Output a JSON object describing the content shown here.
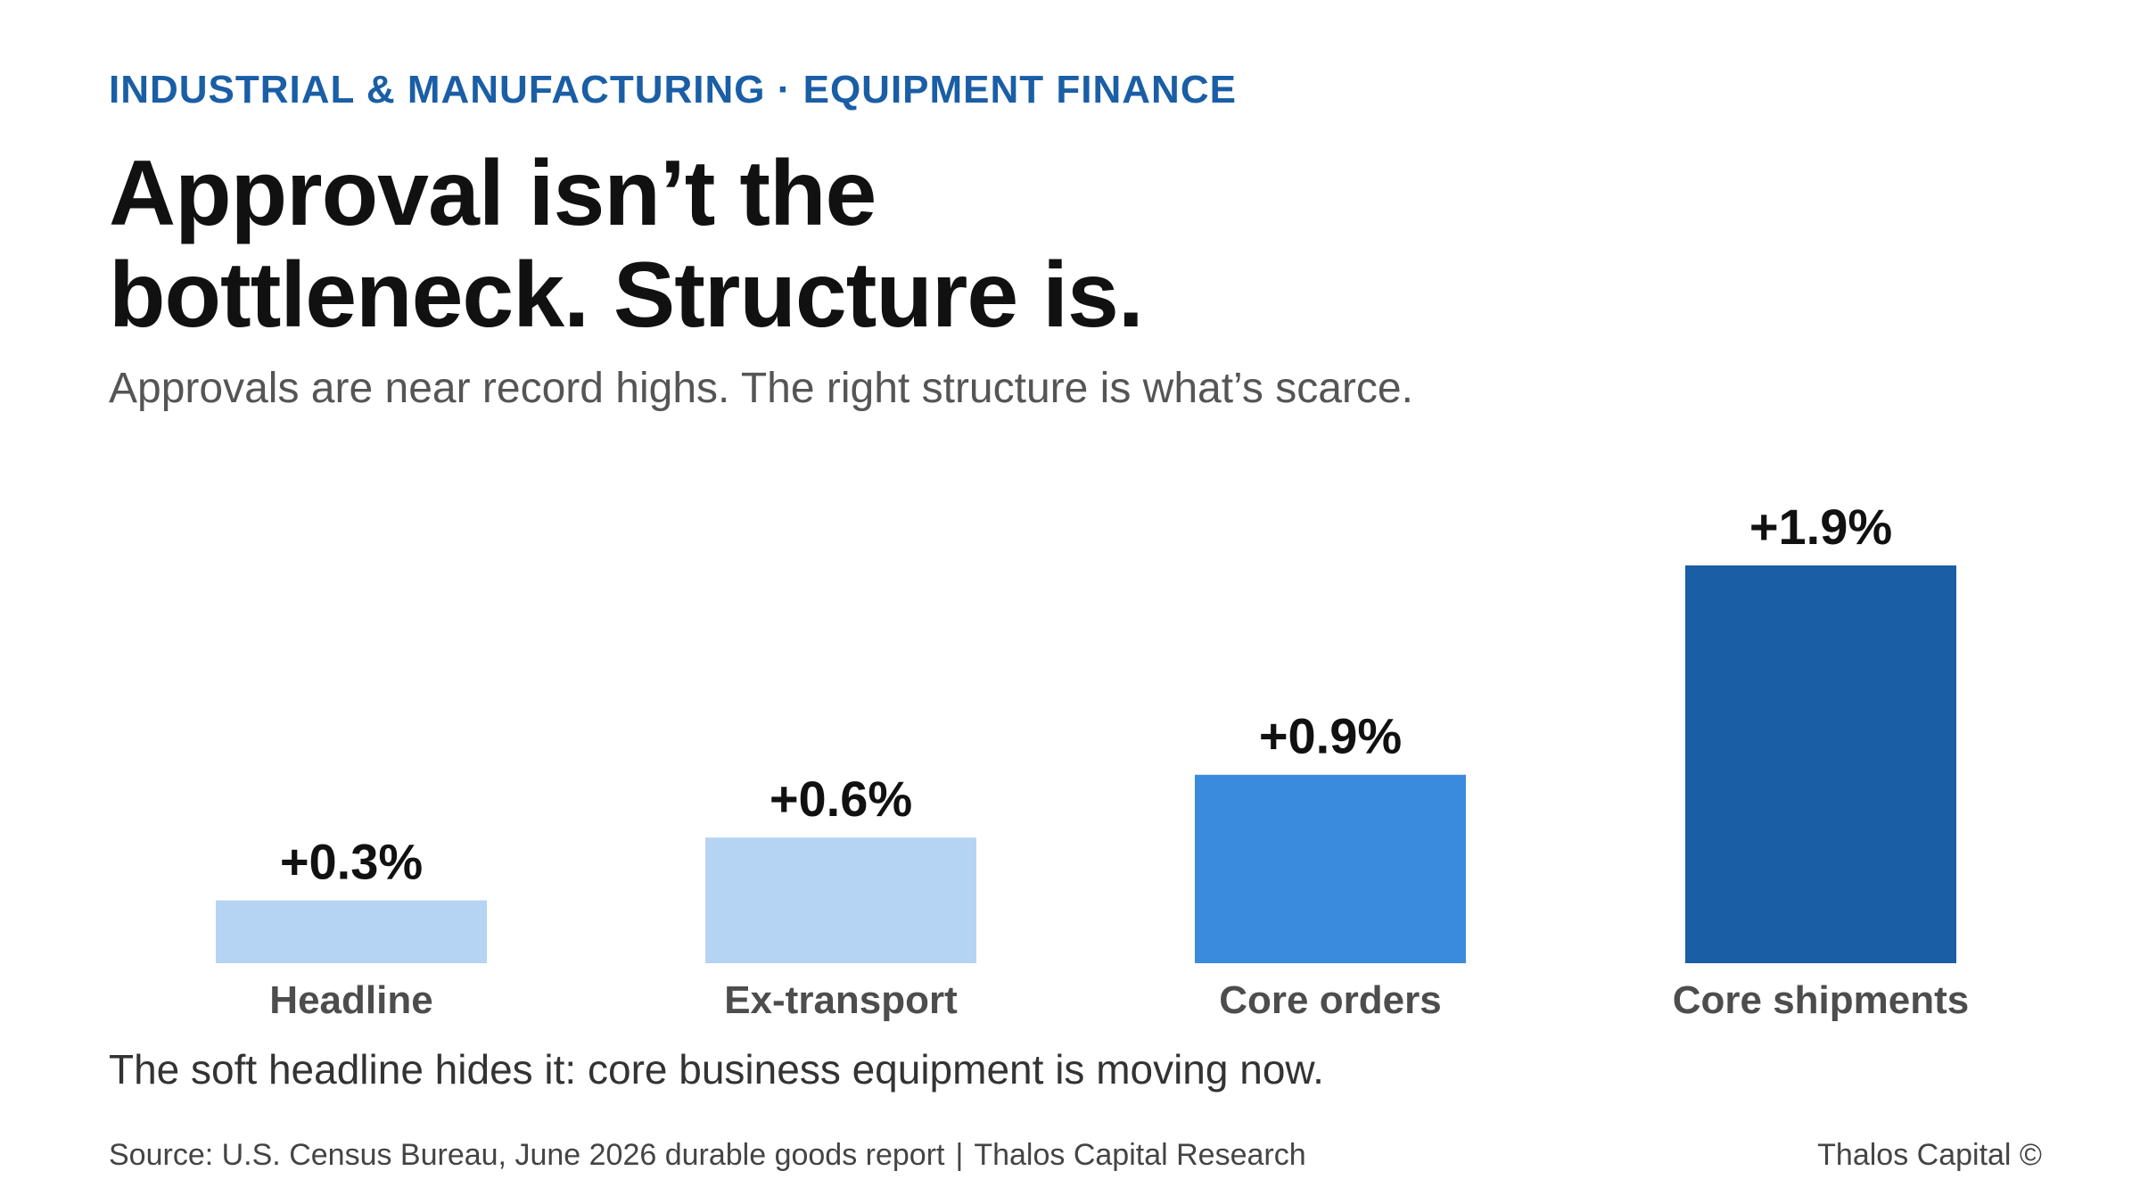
{
  "eyebrow": "INDUSTRIAL & MANUFACTURING · EQUIPMENT FINANCE",
  "title_line1": "Approval isn’t the",
  "title_line2": "bottleneck. Structure is.",
  "subtitle": "Approvals are near record highs. The right structure is what’s scarce.",
  "takeaway": "The soft headline hides it: core business equipment is moving now.",
  "footer": {
    "source": "Source: U.S. Census Bureau, June 2026 durable goods report",
    "separator": "|",
    "research": "Thalos Capital Research",
    "brand": "Thalos Capital ©"
  },
  "chart_data": {
    "type": "bar",
    "categories": [
      "Headline",
      "Ex-transport",
      "Core orders",
      "Core shipments"
    ],
    "values": [
      0.3,
      0.6,
      0.9,
      1.9
    ],
    "value_labels": [
      "+0.3%",
      "+0.6%",
      "+0.9%",
      "+1.9%"
    ],
    "colors": [
      "#b5d4f3",
      "#b5d4f3",
      "#3a8bdd",
      "#1a5ea6"
    ],
    "ylim": [
      0,
      1.9
    ],
    "grid": false,
    "legend": "none"
  }
}
